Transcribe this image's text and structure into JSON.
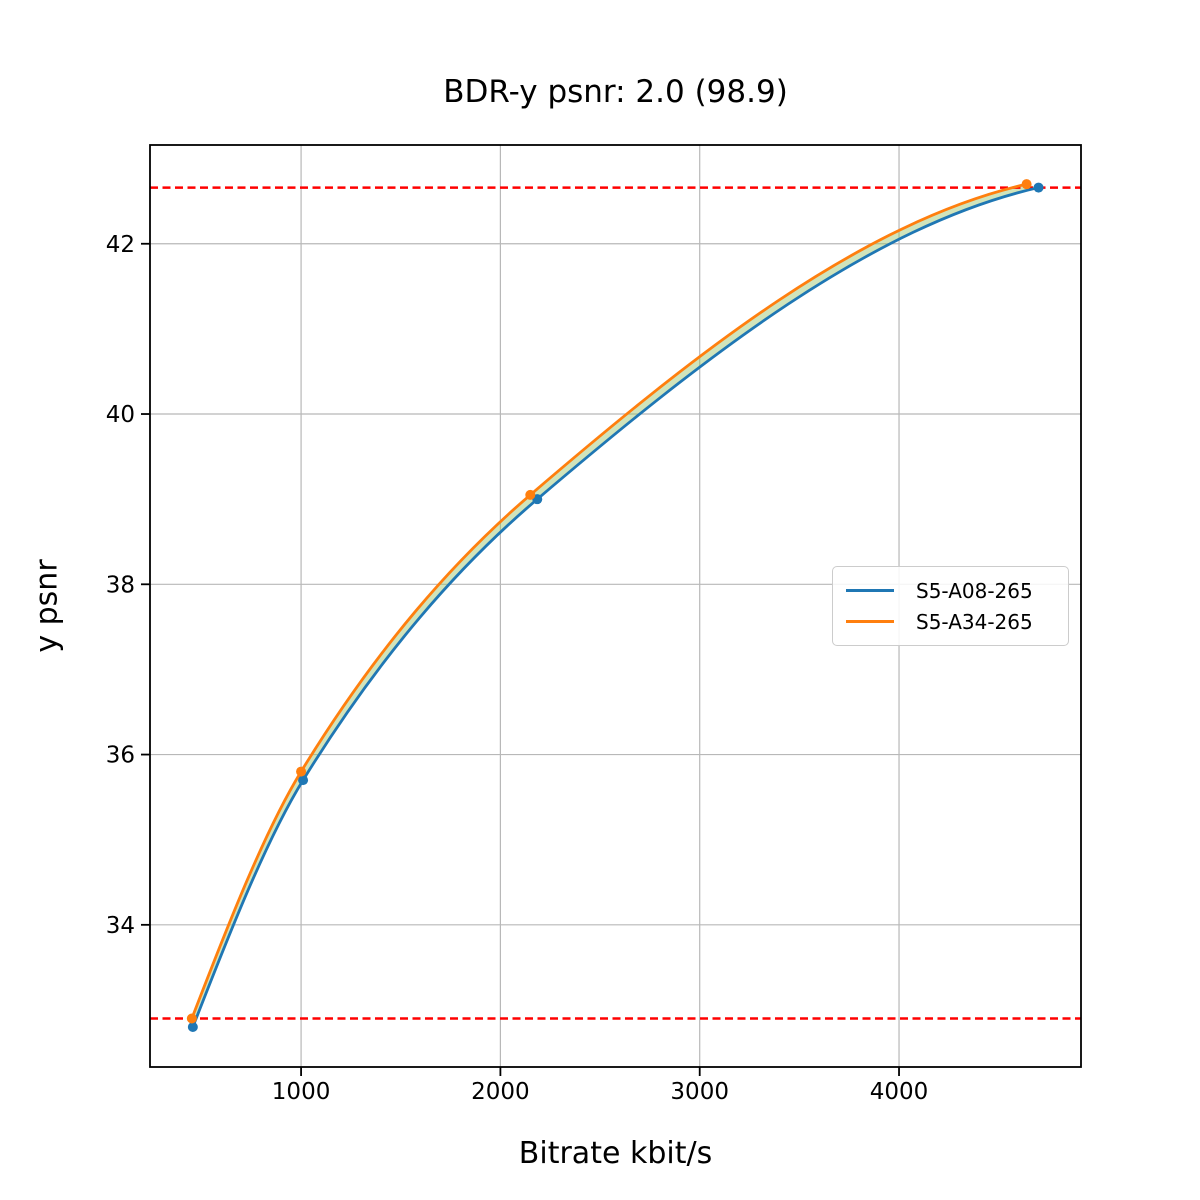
{
  "chart_data": {
    "type": "line",
    "title": "BDR-y psnr: 2.0 (98.9)",
    "xlabel": "Bitrate kbit/s",
    "ylabel": "y psnr",
    "xlim": [
      242,
      4913
    ],
    "ylim": [
      32.33,
      43.16
    ],
    "x_ticks": [
      "1000",
      "2000",
      "3000",
      "4000"
    ],
    "x_tick_values": [
      1000,
      2000,
      3000,
      4000
    ],
    "y_ticks": [
      "34",
      "36",
      "38",
      "40",
      "42"
    ],
    "y_tick_values": [
      34,
      36,
      38,
      40,
      42
    ],
    "grid": true,
    "grid_color": "#b8b8b8",
    "legend_position": "center-right",
    "series": [
      {
        "name": "S5-A08-265",
        "color": "#1f77b4",
        "marker": "circle",
        "points": [
          [
            457,
            32.8
          ],
          [
            1010,
            35.7
          ],
          [
            2185,
            39.0
          ],
          [
            4700,
            42.66
          ]
        ]
      },
      {
        "name": "S5-A34-265",
        "color": "#ff7f0e",
        "marker": "circle",
        "points": [
          [
            452,
            32.9
          ],
          [
            1000,
            35.8
          ],
          [
            2150,
            39.05
          ],
          [
            4640,
            42.7
          ]
        ]
      }
    ],
    "overlap_limit_lines": [
      {
        "y": 42.66,
        "color": "#ff0000",
        "style": "dashed"
      },
      {
        "y": 32.9,
        "color": "#ff0000",
        "style": "dashed"
      }
    ],
    "fill_between_color": "#96c369",
    "fill_between_opacity": 0.45
  }
}
